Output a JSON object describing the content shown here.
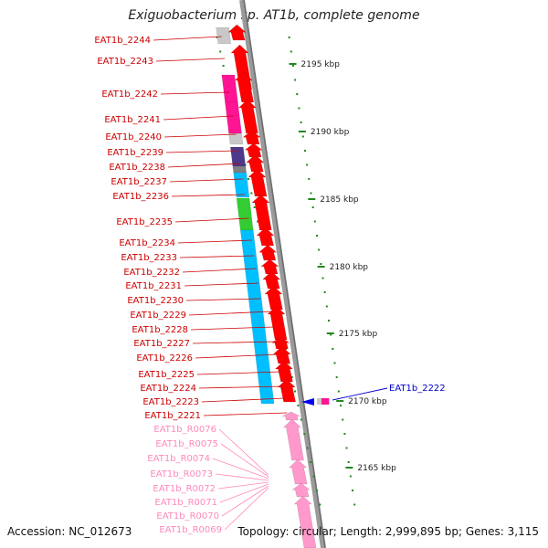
{
  "title": "Exiguobacterium sp. AT1b, complete genome",
  "accession": "Accession: NC_012673",
  "topology": "Topology: circular; Length: 2,999,895 bp; Genes: 3,115",
  "colors": {
    "gene_label": "#cc0000",
    "rna_label": "#ff88bb",
    "highlight_label": "#0000cc",
    "cds_arrow": "#ff0000",
    "rna_arrow": "#ff99cc",
    "backbone": "#888888",
    "tick": "#228822"
  },
  "scale_labels": [
    "2195 kbp",
    "2190 kbp",
    "2185 kbp",
    "2180 kbp",
    "2175 kbp",
    "2170 kbp",
    "2165 kbp"
  ],
  "gene_labels": [
    "EAT1b_2244",
    "EAT1b_2243",
    "EAT1b_2242",
    "EAT1b_2241",
    "EAT1b_2240",
    "EAT1b_2239",
    "EAT1b_2238",
    "EAT1b_2237",
    "EAT1b_2236",
    "EAT1b_2235",
    "EAT1b_2234",
    "EAT1b_2233",
    "EAT1b_2232",
    "EAT1b_2231",
    "EAT1b_2230",
    "EAT1b_2229",
    "EAT1b_2228",
    "EAT1b_2227",
    "EAT1b_2226",
    "EAT1b_2225",
    "EAT1b_2224",
    "EAT1b_2223",
    "EAT1b_2221"
  ],
  "rna_labels": [
    "EAT1b_R0076",
    "EAT1b_R0075",
    "EAT1b_R0074",
    "EAT1b_R0073",
    "EAT1b_R0072",
    "EAT1b_R0071",
    "EAT1b_R0070",
    "EAT1b_R0069"
  ],
  "highlight_label": "EAT1b_2222",
  "cog_blocks": [
    {
      "color": "#c8c8c8"
    },
    {
      "color": "#ff1493"
    },
    {
      "color": "#ff1493"
    },
    {
      "color": "#c8c8c8"
    },
    {
      "color": "#4b3a8c"
    },
    {
      "color": "#808080"
    },
    {
      "color": "#00bfff"
    },
    {
      "color": "#33cc33"
    },
    {
      "color": "#00bfff"
    }
  ]
}
